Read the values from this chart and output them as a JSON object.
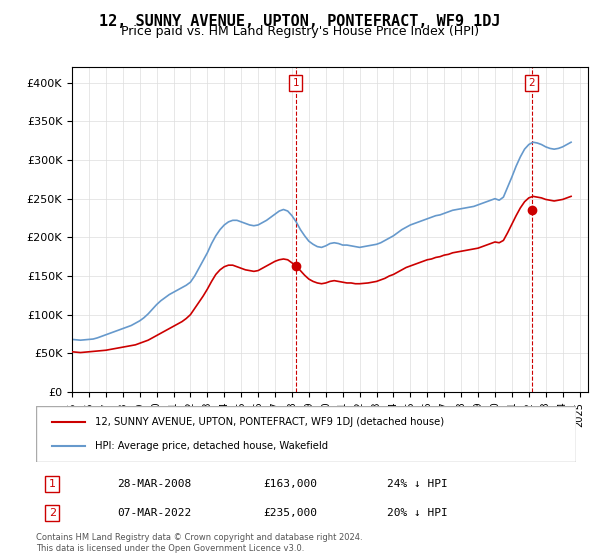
{
  "title": "12, SUNNY AVENUE, UPTON, PONTEFRACT, WF9 1DJ",
  "subtitle": "Price paid vs. HM Land Registry's House Price Index (HPI)",
  "title_fontsize": 11,
  "subtitle_fontsize": 9,
  "ylabel_ticks": [
    "£0",
    "£50K",
    "£100K",
    "£150K",
    "£200K",
    "£250K",
    "£300K",
    "£350K",
    "£400K"
  ],
  "ytick_values": [
    0,
    50000,
    100000,
    150000,
    200000,
    250000,
    300000,
    350000,
    400000
  ],
  "ylim": [
    0,
    420000
  ],
  "xlim_start": 1995.0,
  "xlim_end": 2025.5,
  "hpi_color": "#6699cc",
  "price_color": "#cc0000",
  "vline_color": "#cc0000",
  "marker1_x": 2008.23,
  "marker1_y": 163000,
  "marker2_x": 2022.18,
  "marker2_y": 235000,
  "label1_date": "28-MAR-2008",
  "label1_price": "£163,000",
  "label1_pct": "24% ↓ HPI",
  "label2_date": "07-MAR-2022",
  "label2_price": "£235,000",
  "label2_pct": "20% ↓ HPI",
  "legend_label1": "12, SUNNY AVENUE, UPTON, PONTEFRACT, WF9 1DJ (detached house)",
  "legend_label2": "HPI: Average price, detached house, Wakefield",
  "footnote": "Contains HM Land Registry data © Crown copyright and database right 2024.\nThis data is licensed under the Open Government Licence v3.0.",
  "hpi_years": [
    1995.0,
    1995.25,
    1995.5,
    1995.75,
    1996.0,
    1996.25,
    1996.5,
    1996.75,
    1997.0,
    1997.25,
    1997.5,
    1997.75,
    1998.0,
    1998.25,
    1998.5,
    1998.75,
    1999.0,
    1999.25,
    1999.5,
    1999.75,
    2000.0,
    2000.25,
    2000.5,
    2000.75,
    2001.0,
    2001.25,
    2001.5,
    2001.75,
    2002.0,
    2002.25,
    2002.5,
    2002.75,
    2003.0,
    2003.25,
    2003.5,
    2003.75,
    2004.0,
    2004.25,
    2004.5,
    2004.75,
    2005.0,
    2005.25,
    2005.5,
    2005.75,
    2006.0,
    2006.25,
    2006.5,
    2006.75,
    2007.0,
    2007.25,
    2007.5,
    2007.75,
    2008.0,
    2008.25,
    2008.5,
    2008.75,
    2009.0,
    2009.25,
    2009.5,
    2009.75,
    2010.0,
    2010.25,
    2010.5,
    2010.75,
    2011.0,
    2011.25,
    2011.5,
    2011.75,
    2012.0,
    2012.25,
    2012.5,
    2012.75,
    2013.0,
    2013.25,
    2013.5,
    2013.75,
    2014.0,
    2014.25,
    2014.5,
    2014.75,
    2015.0,
    2015.25,
    2015.5,
    2015.75,
    2016.0,
    2016.25,
    2016.5,
    2016.75,
    2017.0,
    2017.25,
    2017.5,
    2017.75,
    2018.0,
    2018.25,
    2018.5,
    2018.75,
    2019.0,
    2019.25,
    2019.5,
    2019.75,
    2020.0,
    2020.25,
    2020.5,
    2020.75,
    2021.0,
    2021.25,
    2021.5,
    2021.75,
    2022.0,
    2022.25,
    2022.5,
    2022.75,
    2023.0,
    2023.25,
    2023.5,
    2023.75,
    2024.0,
    2024.25,
    2024.5
  ],
  "hpi_values": [
    68000,
    67500,
    67000,
    67500,
    68000,
    68500,
    70000,
    72000,
    74000,
    76000,
    78000,
    80000,
    82000,
    84000,
    86000,
    89000,
    92000,
    96000,
    101000,
    107000,
    113000,
    118000,
    122000,
    126000,
    129000,
    132000,
    135000,
    138000,
    142000,
    150000,
    160000,
    170000,
    180000,
    192000,
    202000,
    210000,
    216000,
    220000,
    222000,
    222000,
    220000,
    218000,
    216000,
    215000,
    216000,
    219000,
    222000,
    226000,
    230000,
    234000,
    236000,
    234000,
    228000,
    220000,
    210000,
    202000,
    195000,
    191000,
    188000,
    187000,
    189000,
    192000,
    193000,
    192000,
    190000,
    190000,
    189000,
    188000,
    187000,
    188000,
    189000,
    190000,
    191000,
    193000,
    196000,
    199000,
    202000,
    206000,
    210000,
    213000,
    216000,
    218000,
    220000,
    222000,
    224000,
    226000,
    228000,
    229000,
    231000,
    233000,
    235000,
    236000,
    237000,
    238000,
    239000,
    240000,
    242000,
    244000,
    246000,
    248000,
    250000,
    248000,
    252000,
    265000,
    278000,
    292000,
    304000,
    314000,
    320000,
    323000,
    322000,
    320000,
    317000,
    315000,
    314000,
    315000,
    317000,
    320000,
    323000
  ],
  "price_years": [
    1995.0,
    1995.25,
    1995.5,
    1995.75,
    1996.0,
    1996.25,
    1996.5,
    1996.75,
    1997.0,
    1997.25,
    1997.5,
    1997.75,
    1998.0,
    1998.25,
    1998.5,
    1998.75,
    1999.0,
    1999.25,
    1999.5,
    1999.75,
    2000.0,
    2000.25,
    2000.5,
    2000.75,
    2001.0,
    2001.25,
    2001.5,
    2001.75,
    2002.0,
    2002.25,
    2002.5,
    2002.75,
    2003.0,
    2003.25,
    2003.5,
    2003.75,
    2004.0,
    2004.25,
    2004.5,
    2004.75,
    2005.0,
    2005.25,
    2005.5,
    2005.75,
    2006.0,
    2006.25,
    2006.5,
    2006.75,
    2007.0,
    2007.25,
    2007.5,
    2007.75,
    2008.0,
    2008.25,
    2008.5,
    2008.75,
    2009.0,
    2009.25,
    2009.5,
    2009.75,
    2010.0,
    2010.25,
    2010.5,
    2010.75,
    2011.0,
    2011.25,
    2011.5,
    2011.75,
    2012.0,
    2012.25,
    2012.5,
    2012.75,
    2013.0,
    2013.25,
    2013.5,
    2013.75,
    2014.0,
    2014.25,
    2014.5,
    2014.75,
    2015.0,
    2015.25,
    2015.5,
    2015.75,
    2016.0,
    2016.25,
    2016.5,
    2016.75,
    2017.0,
    2017.25,
    2017.5,
    2017.75,
    2018.0,
    2018.25,
    2018.5,
    2018.75,
    2019.0,
    2019.25,
    2019.5,
    2019.75,
    2020.0,
    2020.25,
    2020.5,
    2020.75,
    2021.0,
    2021.25,
    2021.5,
    2021.75,
    2022.0,
    2022.25,
    2022.5,
    2022.75,
    2023.0,
    2023.25,
    2023.5,
    2023.75,
    2024.0,
    2024.25,
    2024.5
  ],
  "price_values": [
    52000,
    51500,
    51000,
    51500,
    52000,
    52500,
    53000,
    53500,
    54000,
    55000,
    56000,
    57000,
    58000,
    59000,
    60000,
    61000,
    63000,
    65000,
    67000,
    70000,
    73000,
    76000,
    79000,
    82000,
    85000,
    88000,
    91000,
    95000,
    100000,
    108000,
    116000,
    124000,
    133000,
    143000,
    152000,
    158000,
    162000,
    164000,
    164000,
    162000,
    160000,
    158000,
    157000,
    156000,
    157000,
    160000,
    163000,
    166000,
    169000,
    171000,
    172000,
    171000,
    167000,
    163000,
    157000,
    151000,
    146000,
    143000,
    141000,
    140000,
    141000,
    143000,
    144000,
    143000,
    142000,
    141000,
    141000,
    140000,
    140000,
    140500,
    141000,
    142000,
    143000,
    145000,
    147000,
    150000,
    152000,
    155000,
    158000,
    161000,
    163000,
    165000,
    167000,
    169000,
    171000,
    172000,
    174000,
    175000,
    177000,
    178000,
    180000,
    181000,
    182000,
    183000,
    184000,
    185000,
    186000,
    188000,
    190000,
    192000,
    194000,
    193000,
    196000,
    206000,
    217000,
    228000,
    238000,
    246000,
    251000,
    253000,
    252000,
    251000,
    249000,
    248000,
    247000,
    248000,
    249000,
    251000,
    253000
  ]
}
